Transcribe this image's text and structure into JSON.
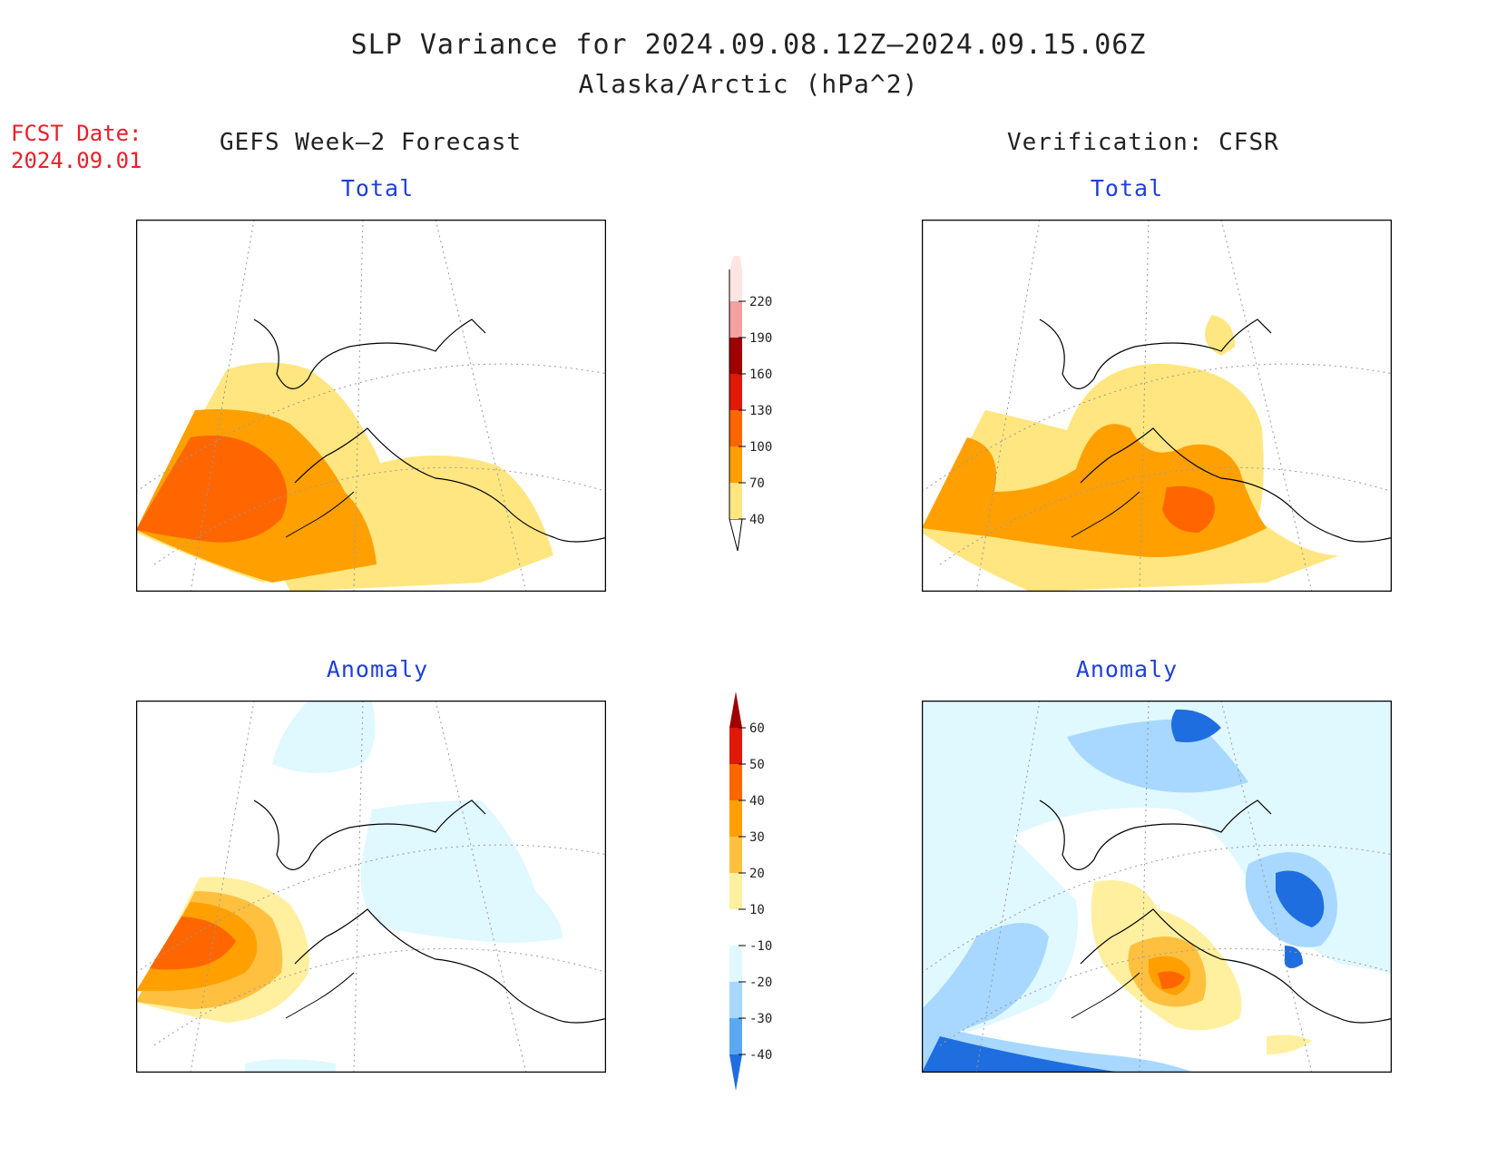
{
  "header": {
    "title": "SLP Variance for 2024.09.08.12Z–2024.09.15.06Z",
    "subtitle": "Alaska/Arctic (hPa^2)",
    "fcst_label": "FCST Date:",
    "fcst_date": "2024.09.01",
    "left_heading": "GEFS Week–2 Forecast",
    "right_heading": "Verification: CFSR"
  },
  "panels": {
    "forecast_total_label": "Total",
    "verification_total_label": "Total",
    "forecast_anomaly_label": "Anomaly",
    "verification_anomaly_label": "Anomaly"
  },
  "colorbars": {
    "total": {
      "levels": [
        "40",
        "70",
        "100",
        "130",
        "160",
        "190",
        "220"
      ],
      "colors": [
        "#ffe680",
        "#ffa000",
        "#ff6600",
        "#e01808",
        "#a00000",
        "#f4a0a0",
        "#ffe4e4"
      ]
    },
    "anomaly": {
      "levels": [
        "60",
        "50",
        "40",
        "30",
        "20",
        "10",
        "-10",
        "-20",
        "-30",
        "-40"
      ],
      "colors": [
        "#a00000",
        "#e01808",
        "#ff6600",
        "#ffa000",
        "#ffc040",
        "#fff0a0",
        "#ffffff",
        "#e0f8ff",
        "#a8d8ff",
        "#5aa8f0",
        "#1e6ee0"
      ]
    }
  },
  "colors": {
    "title_text": "#222222",
    "fcst_red": "#e8202a",
    "label_blue": "#1f3fd8"
  }
}
